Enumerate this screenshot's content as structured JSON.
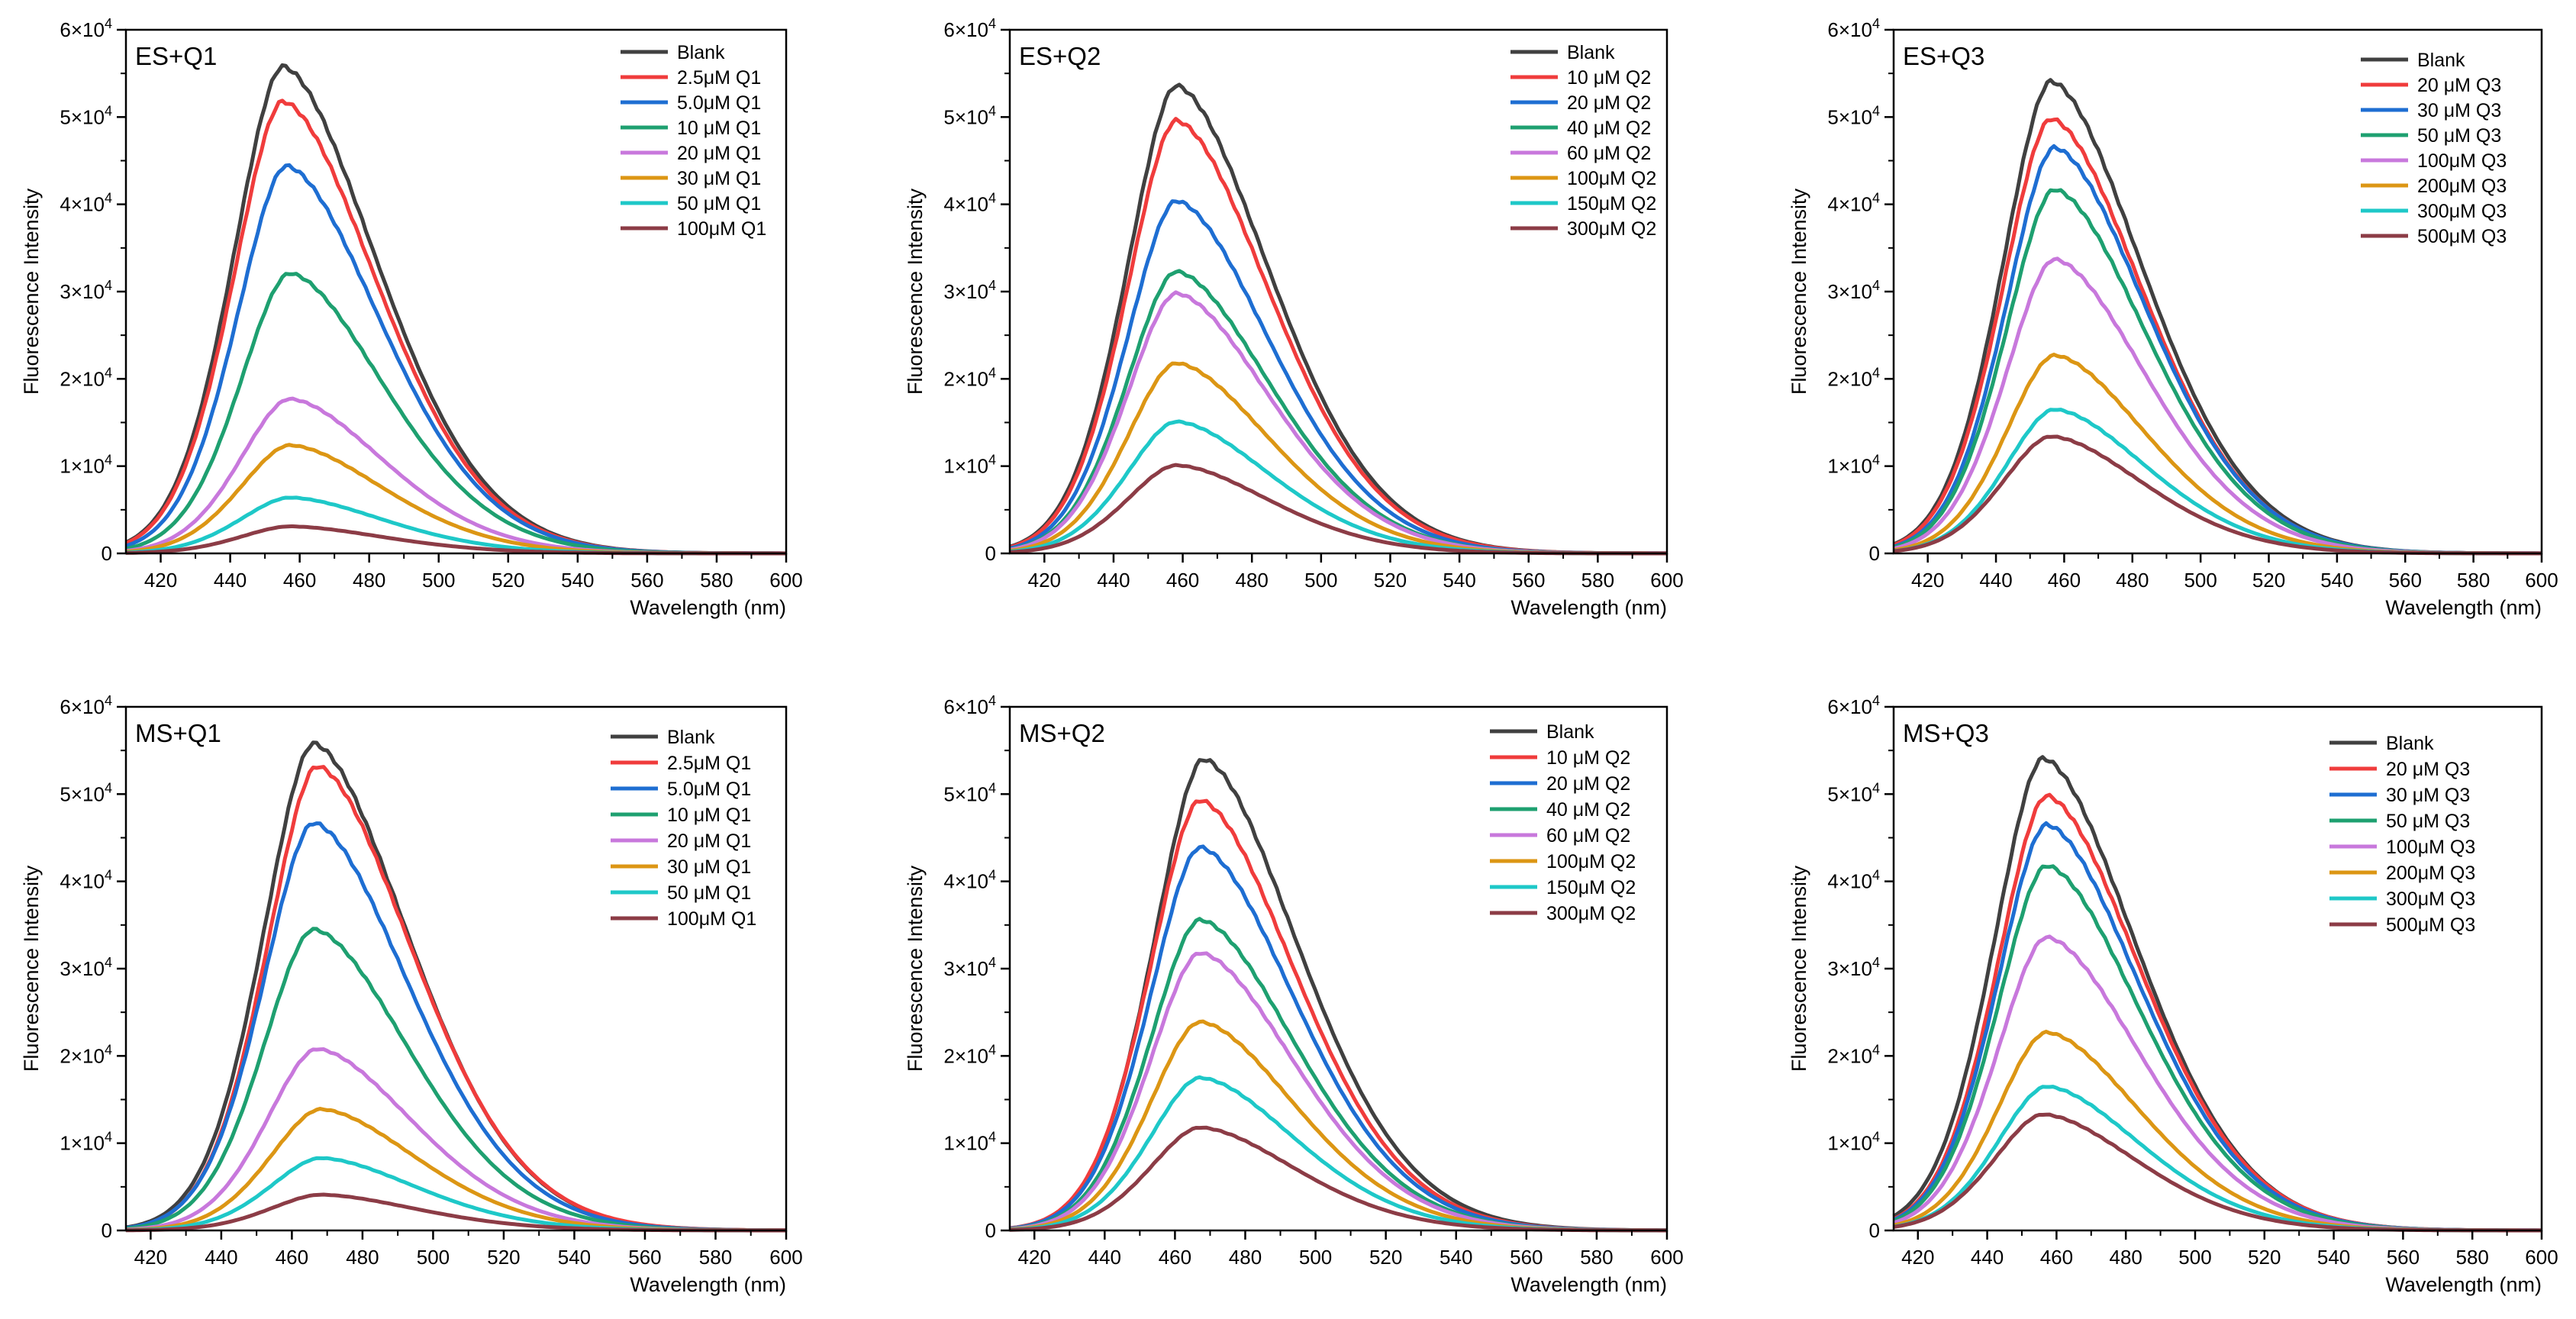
{
  "figure": {
    "palette": [
      "#404040",
      "#f03c3c",
      "#1e6ed2",
      "#1ea070",
      "#c878dc",
      "#dc9614",
      "#1ec8c8",
      "#8c3c46"
    ]
  },
  "chart_data": [
    {
      "type": "line",
      "panel_label": "ES+Q1",
      "xlabel": "Wavelength (nm)",
      "ylabel": "Fluorescence Intensity",
      "xlim": [
        410,
        600
      ],
      "ylim": [
        0,
        60000
      ],
      "x_ticks": [
        "420",
        "440",
        "460",
        "480",
        "500",
        "520",
        "540",
        "560",
        "580",
        "600"
      ],
      "y_ticks": [
        {
          "base": "0",
          "exp": ""
        },
        {
          "base": "1×10",
          "exp": "4"
        },
        {
          "base": "2×10",
          "exp": "4"
        },
        {
          "base": "3×10",
          "exp": "4"
        },
        {
          "base": "4×10",
          "exp": "4"
        },
        {
          "base": "5×10",
          "exp": "4"
        },
        {
          "base": "6×10",
          "exp": "4"
        }
      ],
      "grid": false,
      "legend_position": "top-right",
      "series": [
        {
          "name": "Blank",
          "peak_x": 455,
          "peak_y": 55800
        },
        {
          "name": "2.5μM Q1",
          "peak_x": 455,
          "peak_y": 51800
        },
        {
          "name": "5.0μM Q1",
          "peak_x": 456,
          "peak_y": 44400
        },
        {
          "name": "10 μM Q1",
          "peak_x": 457,
          "peak_y": 32100
        },
        {
          "name": "20 μM Q1",
          "peak_x": 457,
          "peak_y": 17700
        },
        {
          "name": "30 μM Q1",
          "peak_x": 457,
          "peak_y": 12400
        },
        {
          "name": "50 μM Q1",
          "peak_x": 457,
          "peak_y": 6400
        },
        {
          "name": "100μM Q1",
          "peak_x": 457,
          "peak_y": 3100
        }
      ]
    },
    {
      "type": "line",
      "panel_label": "ES+Q2",
      "xlabel": "Wavelength (nm)",
      "ylabel": "Fluorescence Intensity",
      "xlim": [
        410,
        600
      ],
      "ylim": [
        0,
        60000
      ],
      "x_ticks": [
        "420",
        "440",
        "460",
        "480",
        "500",
        "520",
        "540",
        "560",
        "580",
        "600"
      ],
      "y_ticks": [
        {
          "base": "0",
          "exp": ""
        },
        {
          "base": "1×10",
          "exp": "4"
        },
        {
          "base": "2×10",
          "exp": "4"
        },
        {
          "base": "3×10",
          "exp": "4"
        },
        {
          "base": "4×10",
          "exp": "4"
        },
        {
          "base": "5×10",
          "exp": "4"
        },
        {
          "base": "6×10",
          "exp": "4"
        }
      ],
      "grid": false,
      "legend_position": "top-right",
      "series": [
        {
          "name": "Blank",
          "peak_x": 458,
          "peak_y": 53600
        },
        {
          "name": "10 μM Q2",
          "peak_x": 458,
          "peak_y": 49600
        },
        {
          "name": "20 μM Q2",
          "peak_x": 458,
          "peak_y": 40400
        },
        {
          "name": "40 μM Q2",
          "peak_x": 458,
          "peak_y": 32300
        },
        {
          "name": "60 μM Q2",
          "peak_x": 458,
          "peak_y": 29800
        },
        {
          "name": "100μM Q2",
          "peak_x": 458,
          "peak_y": 21800
        },
        {
          "name": "150μM Q2",
          "peak_x": 458,
          "peak_y": 15100
        },
        {
          "name": "300μM Q2",
          "peak_x": 458,
          "peak_y": 10100
        }
      ]
    },
    {
      "type": "line",
      "panel_label": "ES+Q3",
      "xlabel": "Wavelength (nm)",
      "ylabel": "Fluorescence Intensity",
      "xlim": [
        410,
        600
      ],
      "ylim": [
        0,
        60000
      ],
      "x_ticks": [
        "420",
        "440",
        "460",
        "480",
        "500",
        "520",
        "540",
        "560",
        "580",
        "600"
      ],
      "y_ticks": [
        {
          "base": "0",
          "exp": ""
        },
        {
          "base": "1×10",
          "exp": "4"
        },
        {
          "base": "2×10",
          "exp": "4"
        },
        {
          "base": "3×10",
          "exp": "4"
        },
        {
          "base": "4×10",
          "exp": "4"
        },
        {
          "base": "5×10",
          "exp": "4"
        },
        {
          "base": "6×10",
          "exp": "4"
        }
      ],
      "grid": false,
      "legend_position": "top-right",
      "series": [
        {
          "name": "Blank",
          "peak_x": 456,
          "peak_y": 54100
        },
        {
          "name": "20 μM Q3",
          "peak_x": 456,
          "peak_y": 49800
        },
        {
          "name": "30 μM Q3",
          "peak_x": 457,
          "peak_y": 46500
        },
        {
          "name": "50 μM Q3",
          "peak_x": 457,
          "peak_y": 41700
        },
        {
          "name": "100μM Q3",
          "peak_x": 457,
          "peak_y": 33700
        },
        {
          "name": "200μM Q3",
          "peak_x": 457,
          "peak_y": 22700
        },
        {
          "name": "300μM Q3",
          "peak_x": 457,
          "peak_y": 16500
        },
        {
          "name": "500μM Q3",
          "peak_x": 456,
          "peak_y": 13400
        }
      ]
    },
    {
      "type": "line",
      "panel_label": "MS+Q1",
      "xlabel": "Wavelength (nm)",
      "ylabel": "Fluorescence Intensity",
      "xlim": [
        413,
        600
      ],
      "ylim": [
        0,
        60000
      ],
      "x_ticks": [
        "420",
        "440",
        "460",
        "480",
        "500",
        "520",
        "540",
        "560",
        "580",
        "600"
      ],
      "y_ticks": [
        {
          "base": "0",
          "exp": ""
        },
        {
          "base": "1×10",
          "exp": "4"
        },
        {
          "base": "2×10",
          "exp": "4"
        },
        {
          "base": "3×10",
          "exp": "4"
        },
        {
          "base": "4×10",
          "exp": "4"
        },
        {
          "base": "5×10",
          "exp": "4"
        },
        {
          "base": "6×10",
          "exp": "4"
        }
      ],
      "grid": false,
      "legend_position": "top-right",
      "series": [
        {
          "name": "Blank",
          "peak_x": 466,
          "peak_y": 55800
        },
        {
          "name": "2.5μM Q1",
          "peak_x": 467,
          "peak_y": 53200
        },
        {
          "name": "5.0μM Q1",
          "peak_x": 466,
          "peak_y": 46700
        },
        {
          "name": "10 μM Q1",
          "peak_x": 466,
          "peak_y": 34500
        },
        {
          "name": "20 μM Q1",
          "peak_x": 467,
          "peak_y": 20800
        },
        {
          "name": "30 μM Q1",
          "peak_x": 468,
          "peak_y": 13900
        },
        {
          "name": "50 μM Q1",
          "peak_x": 468,
          "peak_y": 8300
        },
        {
          "name": "100μM Q1",
          "peak_x": 468,
          "peak_y": 4100
        }
      ]
    },
    {
      "type": "line",
      "panel_label": "MS+Q2",
      "xlabel": "Wavelength (nm)",
      "ylabel": "Fluorescence Intensity",
      "xlim": [
        413,
        600
      ],
      "ylim": [
        0,
        60000
      ],
      "x_ticks": [
        "420",
        "440",
        "460",
        "480",
        "500",
        "520",
        "540",
        "560",
        "580",
        "600"
      ],
      "y_ticks": [
        {
          "base": "0",
          "exp": ""
        },
        {
          "base": "1×10",
          "exp": "4"
        },
        {
          "base": "2×10",
          "exp": "4"
        },
        {
          "base": "3×10",
          "exp": "4"
        },
        {
          "base": "4×10",
          "exp": "4"
        },
        {
          "base": "5×10",
          "exp": "4"
        },
        {
          "base": "6×10",
          "exp": "4"
        }
      ],
      "grid": false,
      "legend_position": "top-right",
      "series": [
        {
          "name": "Blank",
          "peak_x": 468,
          "peak_y": 54000
        },
        {
          "name": "10 μM Q2",
          "peak_x": 467,
          "peak_y": 49300
        },
        {
          "name": "20 μM Q2",
          "peak_x": 467,
          "peak_y": 43900
        },
        {
          "name": "40 μM Q2",
          "peak_x": 467,
          "peak_y": 35600
        },
        {
          "name": "60 μM Q2",
          "peak_x": 467,
          "peak_y": 31800
        },
        {
          "name": "100μM Q2",
          "peak_x": 467,
          "peak_y": 23900
        },
        {
          "name": "150μM Q2",
          "peak_x": 467,
          "peak_y": 17500
        },
        {
          "name": "300μM Q2",
          "peak_x": 467,
          "peak_y": 11800
        }
      ]
    },
    {
      "type": "line",
      "panel_label": "MS+Q3",
      "xlabel": "Wavelength (nm)",
      "ylabel": "Fluorescence Intensity",
      "xlim": [
        413,
        600
      ],
      "ylim": [
        0,
        60000
      ],
      "x_ticks": [
        "420",
        "440",
        "460",
        "480",
        "500",
        "520",
        "540",
        "560",
        "580",
        "600"
      ],
      "y_ticks": [
        {
          "base": "0",
          "exp": ""
        },
        {
          "base": "1×10",
          "exp": "4"
        },
        {
          "base": "2×10",
          "exp": "4"
        },
        {
          "base": "3×10",
          "exp": "4"
        },
        {
          "base": "4×10",
          "exp": "4"
        },
        {
          "base": "5×10",
          "exp": "4"
        },
        {
          "base": "6×10",
          "exp": "4"
        }
      ],
      "grid": false,
      "legend_position": "top-right",
      "series": [
        {
          "name": "Blank",
          "peak_x": 456,
          "peak_y": 54100
        },
        {
          "name": "20 μM Q3",
          "peak_x": 457,
          "peak_y": 49800
        },
        {
          "name": "30 μM Q3",
          "peak_x": 457,
          "peak_y": 46500
        },
        {
          "name": "50 μM Q3",
          "peak_x": 457,
          "peak_y": 41800
        },
        {
          "name": "100μM Q3",
          "peak_x": 457,
          "peak_y": 33600
        },
        {
          "name": "200μM Q3",
          "peak_x": 457,
          "peak_y": 22700
        },
        {
          "name": "300μM Q3",
          "peak_x": 457,
          "peak_y": 16500
        },
        {
          "name": "500μM Q3",
          "peak_x": 456,
          "peak_y": 13300
        }
      ]
    }
  ]
}
